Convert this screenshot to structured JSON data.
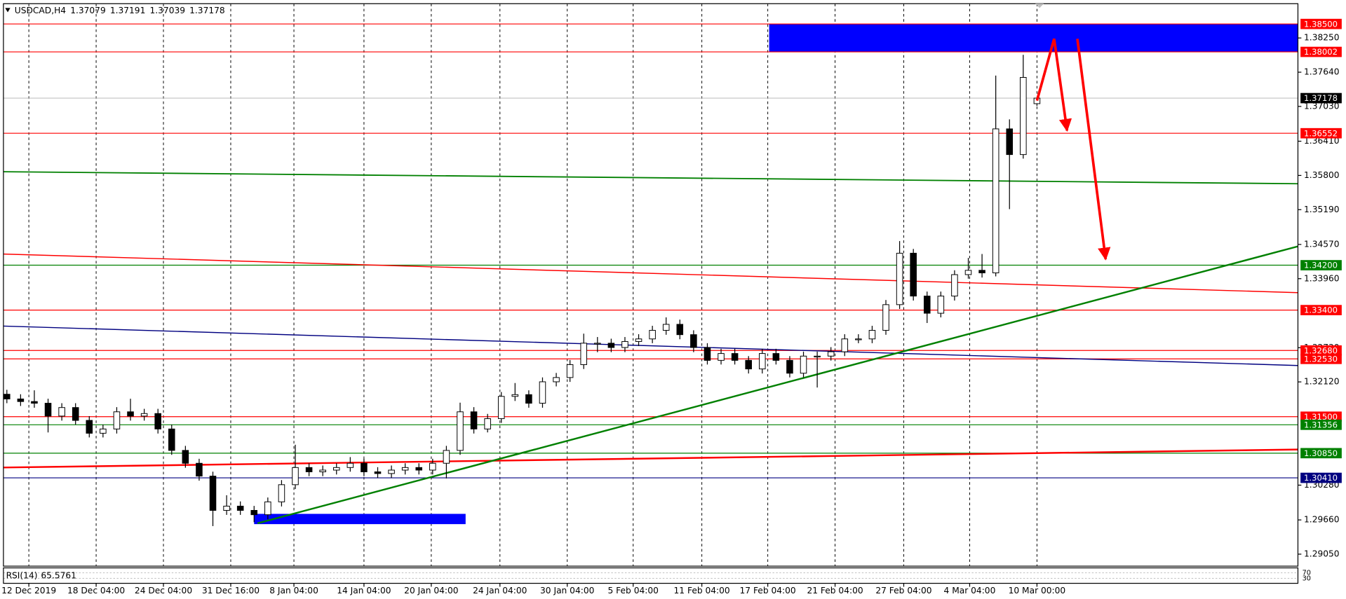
{
  "chart_data": {
    "type": "candlestick",
    "symbol": "USDCAD,H4",
    "open": [
      1.319,
      1.31816,
      1.3177,
      1.3174,
      1.31511,
      1.31663,
      1.31434,
      1.31205,
      1.31281,
      1.31587,
      1.31511,
      1.31556,
      1.31281,
      1.30899,
      1.3067,
      1.30441,
      1.2983,
      1.29906,
      1.2983,
      1.29753,
      1.29982,
      1.30288,
      1.30594,
      1.30517,
      1.30548,
      1.30594,
      1.3067,
      1.30517,
      1.30487,
      1.30548,
      1.30594,
      1.30548,
      1.3067,
      1.30899,
      1.31587,
      1.31281,
      1.31465,
      1.31862,
      1.31893,
      1.3174,
      1.32122,
      1.32198,
      1.32428,
      1.3281,
      1.3281,
      1.32733,
      1.3284,
      1.32886,
      1.33039,
      1.33146,
      1.32962,
      1.32733,
      1.32504,
      1.32626,
      1.32504,
      1.32351,
      1.32626,
      1.32504,
      1.32275,
      1.3258,
      1.3258,
      1.32657,
      1.32886,
      1.32886,
      1.33039,
      1.33497,
      1.34414,
      1.3365,
      1.33344,
      1.3365,
      1.34032,
      1.34109,
      1.34063,
      1.3663,
      1.36172,
      1.37079
    ],
    "high": [
      1.3198,
      1.319,
      1.3197,
      1.3182,
      1.3174,
      1.3174,
      1.3151,
      1.3136,
      1.3167,
      1.3182,
      1.3164,
      1.3164,
      1.3136,
      1.3098,
      1.3075,
      1.3052,
      1.301,
      1.2999,
      1.2991,
      1.3006,
      1.3037,
      1.31,
      1.3067,
      1.3063,
      1.3067,
      1.3078,
      1.3075,
      1.306,
      1.3063,
      1.3067,
      1.3067,
      1.3075,
      1.3098,
      1.3175,
      1.3167,
      1.3155,
      1.3194,
      1.321,
      1.3197,
      1.322,
      1.3228,
      1.3251,
      1.3298,
      1.3292,
      1.3289,
      1.3292,
      1.3297,
      1.3312,
      1.3327,
      1.3323,
      1.3304,
      1.3281,
      1.3271,
      1.3271,
      1.3258,
      1.3271,
      1.3271,
      1.3258,
      1.3266,
      1.3266,
      1.3274,
      1.3297,
      1.3297,
      1.3312,
      1.3358,
      1.3463,
      1.3449,
      1.3373,
      1.3373,
      1.3411,
      1.3433,
      1.344,
      1.3758,
      1.368,
      1.3795,
      1.37191
    ],
    "low": [
      1.3174,
      1.3169,
      1.3166,
      1.3122,
      1.3143,
      1.3136,
      1.3113,
      1.3113,
      1.312,
      1.3143,
      1.3143,
      1.312,
      1.3082,
      1.3059,
      1.3036,
      1.2955,
      1.2975,
      1.2975,
      1.2962,
      1.2967,
      1.299,
      1.3021,
      1.3044,
      1.3044,
      1.3047,
      1.3052,
      1.3044,
      1.3041,
      1.3041,
      1.3047,
      1.3047,
      1.3047,
      1.304,
      1.3082,
      1.312,
      1.3122,
      1.3139,
      1.3178,
      1.3166,
      1.3166,
      1.3204,
      1.3212,
      1.3235,
      1.3265,
      1.3265,
      1.3265,
      1.3276,
      1.3281,
      1.3296,
      1.3288,
      1.3265,
      1.3243,
      1.3243,
      1.3243,
      1.3227,
      1.3227,
      1.3243,
      1.322,
      1.322,
      1.3202,
      1.325,
      1.3258,
      1.3281,
      1.3281,
      1.3296,
      1.3342,
      1.3357,
      1.3317,
      1.3327,
      1.3357,
      1.3396,
      1.3398,
      1.34,
      1.352,
      1.361,
      1.37039
    ],
    "close": [
      1.31816,
      1.3177,
      1.3174,
      1.31511,
      1.31663,
      1.31434,
      1.31205,
      1.31281,
      1.31587,
      1.31511,
      1.31556,
      1.31281,
      1.30899,
      1.3067,
      1.30441,
      1.2983,
      1.29906,
      1.2983,
      1.29753,
      1.29982,
      1.30288,
      1.30594,
      1.30517,
      1.30548,
      1.30594,
      1.3067,
      1.30517,
      1.30487,
      1.30548,
      1.30594,
      1.30548,
      1.3067,
      1.30899,
      1.31587,
      1.31281,
      1.31465,
      1.31862,
      1.31893,
      1.3174,
      1.32122,
      1.32198,
      1.32428,
      1.3281,
      1.3281,
      1.32733,
      1.3284,
      1.32886,
      1.33039,
      1.33146,
      1.32962,
      1.32733,
      1.32504,
      1.32626,
      1.32504,
      1.32351,
      1.32626,
      1.32504,
      1.32275,
      1.3258,
      1.3258,
      1.32657,
      1.32886,
      1.32886,
      1.33039,
      1.33497,
      1.34414,
      1.3365,
      1.33344,
      1.3365,
      1.34032,
      1.34109,
      1.34063,
      1.3663,
      1.36172,
      1.37547,
      1.37178
    ],
    "colors": {
      "up": "#ffffff",
      "down": "#000000",
      "outline": "#000000",
      "last_price": "#000000"
    },
    "xlim": [
      -0.25,
      94
    ],
    "ylim": [
      1.28836,
      1.38861
    ],
    "grid": "vertical",
    "xticks": [
      {
        "value": 1.6,
        "label": "12 Dec 2019"
      },
      {
        "value": 6.5,
        "label": "18 Dec 04:00"
      },
      {
        "value": 11.4,
        "label": "24 Dec 04:00"
      },
      {
        "value": 16.3,
        "label": "31 Dec 16:00"
      },
      {
        "value": 20.9,
        "label": "8 Jan 04:00"
      },
      {
        "value": 26,
        "label": "14 Jan 04:00"
      },
      {
        "value": 30.9,
        "label": "20 Jan 04:00"
      },
      {
        "value": 35.9,
        "label": "24 Jan 04:00"
      },
      {
        "value": 40.8,
        "label": "30 Jan 04:00"
      },
      {
        "value": 45.6,
        "label": "5 Feb 04:00"
      },
      {
        "value": 50.6,
        "label": "11 Feb 04:00"
      },
      {
        "value": 55.4,
        "label": "17 Feb 04:00"
      },
      {
        "value": 60.3,
        "label": "21 Feb 04:00"
      },
      {
        "value": 65.3,
        "label": "27 Feb 04:00"
      },
      {
        "value": 70.1,
        "label": "4 Mar 04:00"
      },
      {
        "value": 75,
        "label": "10 Mar 00:00"
      }
    ],
    "yticks": [
      {
        "value": 1.3825,
        "label": "1.38250"
      },
      {
        "value": 1.3764,
        "label": "1.37640"
      },
      {
        "value": 1.3703,
        "label": "1.37030"
      },
      {
        "value": 1.3641,
        "label": "1.36410"
      },
      {
        "value": 1.358,
        "label": "1.35800"
      },
      {
        "value": 1.3519,
        "label": "1.35190"
      },
      {
        "value": 1.3457,
        "label": "1.34570"
      },
      {
        "value": 1.3396,
        "label": "1.33960"
      },
      {
        "value": 1.3273,
        "label": "1.32730"
      },
      {
        "value": 1.3212,
        "label": "1.32120"
      },
      {
        "value": 1.3028,
        "label": "1.30280"
      },
      {
        "value": 1.2966,
        "label": "1.29660"
      },
      {
        "value": 1.2905,
        "label": "1.29050"
      }
    ],
    "levels": [
      {
        "value": 1.385,
        "label": "1.38500",
        "color": "#ff0000"
      },
      {
        "value": 1.38002,
        "label": "1.38002",
        "color": "#ff0000"
      },
      {
        "value": 1.36552,
        "label": "1.36552",
        "color": "#ff0000"
      },
      {
        "value": 1.342,
        "label": "1.34200",
        "color": "#008000"
      },
      {
        "value": 1.334,
        "label": "1.33400",
        "color": "#ff0000"
      },
      {
        "value": 1.3268,
        "label": "1.32680",
        "color": "#ff0000"
      },
      {
        "value": 1.3253,
        "label": "1.32530",
        "color": "#ff0000"
      },
      {
        "value": 1.315,
        "label": "1.31500",
        "color": "#ff0000"
      },
      {
        "value": 1.31356,
        "label": "1.31356",
        "color": "#008000"
      },
      {
        "value": 1.3085,
        "label": "1.30850",
        "color": "#008000"
      },
      {
        "value": 1.3041,
        "label": "1.30410",
        "color": "#000080"
      }
    ],
    "trendlines": [
      {
        "color": "#008000",
        "width": 1.5,
        "start": [
          -0.25,
          1.35866
        ],
        "end": [
          94,
          1.35652
        ]
      },
      {
        "color": "#ff0000",
        "width": 1.2,
        "start": [
          -0.25,
          1.34399
        ],
        "end": [
          94,
          1.33711
        ]
      },
      {
        "color": "#000080",
        "width": 1.2,
        "start": [
          -0.25,
          1.33115
        ],
        "end": [
          94,
          1.32412
        ]
      },
      {
        "color": "#ff0000",
        "width": 2,
        "start": [
          -0.25,
          1.30594
        ],
        "end": [
          94,
          1.30915
        ]
      },
      {
        "color": "#008000",
        "width": 2,
        "start": [
          18.25,
          1.296
        ],
        "end": [
          94,
          1.34536
        ]
      }
    ],
    "zones": [
      {
        "color": "#0000ff",
        "x": [
          55.5,
          94
        ],
        "price": [
          1.38002,
          1.385
        ]
      },
      {
        "color": "#0000ff",
        "x": [
          18,
          33.4
        ],
        "price": [
          1.29585,
          1.29768
        ]
      }
    ],
    "arrows": [
      {
        "color": "#ff0000",
        "points": [
          [
            75,
            1.37134
          ],
          [
            76.25,
            1.38235
          ],
          [
            77.19,
            1.366
          ]
        ]
      },
      {
        "color": "#ff0000",
        "points": [
          [
            77.94,
            1.38235
          ],
          [
            80,
            1.34307
          ]
        ]
      }
    ],
    "rsi": {
      "name": "RSI(14)",
      "value": 65.5761,
      "levels": [
        70,
        30
      ],
      "ylim": [
        0,
        100
      ]
    }
  }
}
